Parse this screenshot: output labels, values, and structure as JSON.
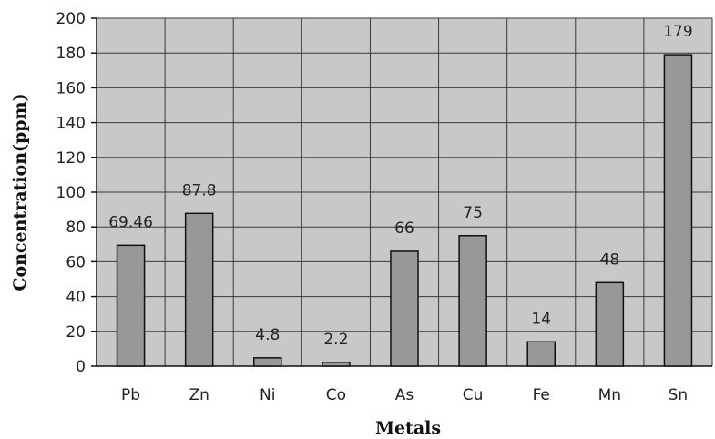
{
  "chart_data": {
    "type": "bar",
    "title": "",
    "xlabel": "Metals",
    "ylabel": "Concentration(ppm)",
    "categories": [
      "Pb",
      "Zn",
      "Ni",
      "Co",
      "As",
      "Cu",
      "Fe",
      "Mn",
      "Sn"
    ],
    "values": [
      69.46,
      87.8,
      4.8,
      2.2,
      66,
      75,
      14,
      48,
      179
    ],
    "data_labels": [
      "69.46",
      "87.8",
      "4.8",
      "2.2",
      "66",
      "75",
      "14",
      "48",
      "179"
    ],
    "ylim": [
      0,
      200
    ],
    "yticks": [
      0,
      20,
      40,
      60,
      80,
      100,
      120,
      140,
      160,
      180,
      200
    ],
    "grid": true,
    "legend": "none",
    "colors": {
      "plot_background": "#c8c8c8",
      "bar_fill": "#989898",
      "bar_stroke": "#111111",
      "grid": "#3a3a3a"
    }
  }
}
